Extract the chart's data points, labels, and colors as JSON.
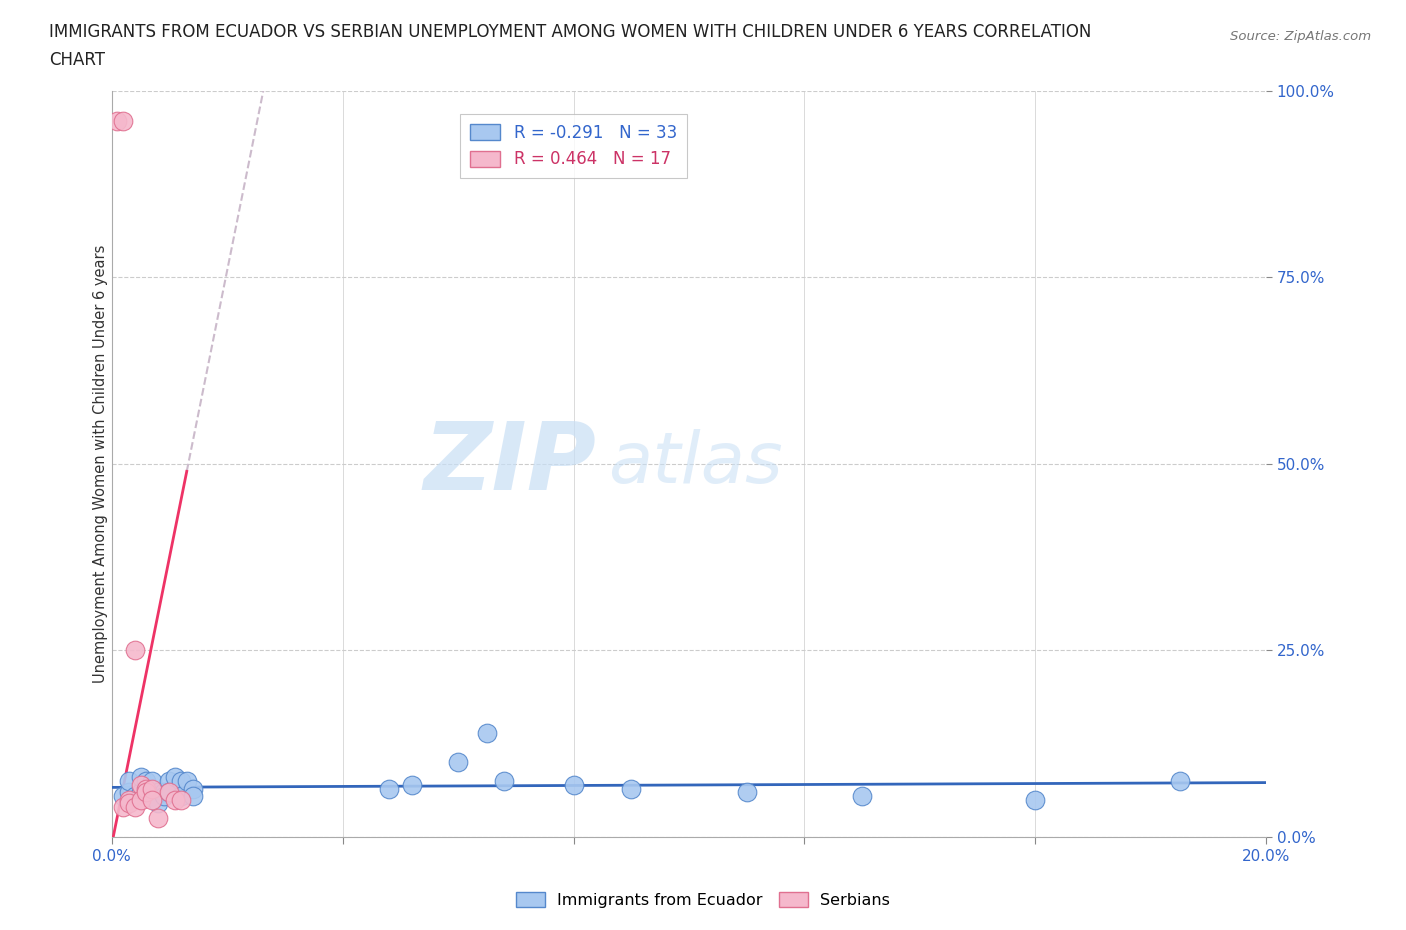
{
  "title_line1": "IMMIGRANTS FROM ECUADOR VS SERBIAN UNEMPLOYMENT AMONG WOMEN WITH CHILDREN UNDER 6 YEARS CORRELATION",
  "title_line2": "CHART",
  "source": "Source: ZipAtlas.com",
  "ylabel": "Unemployment Among Women with Children Under 6 years",
  "xlim": [
    0.0,
    0.2
  ],
  "ylim": [
    0.0,
    1.0
  ],
  "xticks": [
    0.0,
    0.04,
    0.08,
    0.12,
    0.16,
    0.2
  ],
  "xtick_labels_visible": [
    "0.0%",
    "",
    "",
    "",
    "",
    "20.0%"
  ],
  "yticks": [
    0.0,
    0.25,
    0.5,
    0.75,
    1.0
  ],
  "ytick_labels": [
    "0.0%",
    "25.0%",
    "50.0%",
    "75.0%",
    "100.0%"
  ],
  "ecuador_color": "#a8c8f0",
  "serbia_color": "#f5b8cc",
  "ecuador_edge_color": "#5588cc",
  "serbia_edge_color": "#e07090",
  "trend_ecuador_color": "#3366bb",
  "trend_serbia_color": "#ee3366",
  "trend_serbia_dash_color": "#ccbbcc",
  "legend_r_ecuador": "R = -0.291",
  "legend_n_ecuador": "N = 33",
  "legend_r_serbia": "R = 0.464",
  "legend_n_serbia": "N = 17",
  "watermark_zip": "ZIP",
  "watermark_atlas": "atlas",
  "ecuador_x": [
    0.002,
    0.003,
    0.003,
    0.004,
    0.005,
    0.005,
    0.006,
    0.006,
    0.007,
    0.007,
    0.008,
    0.008,
    0.009,
    0.009,
    0.01,
    0.01,
    0.011,
    0.012,
    0.012,
    0.013,
    0.014,
    0.014,
    0.048,
    0.052,
    0.06,
    0.065,
    0.068,
    0.08,
    0.09,
    0.11,
    0.13,
    0.16,
    0.185
  ],
  "ecuador_y": [
    0.055,
    0.06,
    0.075,
    0.055,
    0.06,
    0.08,
    0.06,
    0.075,
    0.055,
    0.075,
    0.06,
    0.045,
    0.06,
    0.055,
    0.075,
    0.06,
    0.08,
    0.075,
    0.055,
    0.075,
    0.065,
    0.055,
    0.065,
    0.07,
    0.1,
    0.14,
    0.075,
    0.07,
    0.065,
    0.06,
    0.055,
    0.05,
    0.075
  ],
  "serbia_x": [
    0.001,
    0.002,
    0.002,
    0.003,
    0.003,
    0.004,
    0.004,
    0.005,
    0.005,
    0.006,
    0.006,
    0.007,
    0.007,
    0.008,
    0.01,
    0.011,
    0.012
  ],
  "serbia_y": [
    0.96,
    0.96,
    0.04,
    0.05,
    0.045,
    0.25,
    0.04,
    0.07,
    0.05,
    0.065,
    0.06,
    0.065,
    0.05,
    0.025,
    0.06,
    0.05,
    0.05
  ],
  "serbia_trend_x0": 0.0,
  "serbia_trend_x1": 0.013,
  "serbia_trend_dash_x0": 0.013,
  "serbia_trend_dash_x1": 0.06
}
